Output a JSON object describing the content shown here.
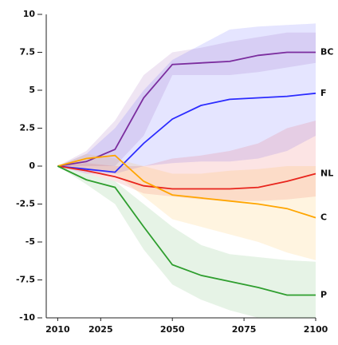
{
  "chart_data": {
    "type": "line",
    "x": [
      2010,
      2020,
      2030,
      2040,
      2050,
      2060,
      2070,
      2080,
      2090,
      2100
    ],
    "xlim": [
      2006,
      2100
    ],
    "xticks": [
      2010,
      2025,
      2050,
      2075,
      2100
    ],
    "ylim": [
      -10,
      10
    ],
    "yticks": [
      -10,
      -7.5,
      -5,
      -2.5,
      0,
      2.5,
      5,
      7.5,
      10
    ],
    "series": [
      {
        "name": "BC",
        "color": "#7b2d9e",
        "values": [
          0,
          0.3,
          1.1,
          4.5,
          6.7,
          6.8,
          6.9,
          7.3,
          7.5,
          7.5
        ],
        "lower": [
          0,
          0,
          0,
          2,
          6,
          6,
          6,
          6.2,
          6.5,
          6.8
        ],
        "upper": [
          0,
          1,
          3,
          6,
          7.5,
          7.8,
          8.2,
          8.5,
          8.8,
          8.8
        ]
      },
      {
        "name": "F",
        "color": "#2b2bff",
        "values": [
          0,
          -0.2,
          -0.4,
          1.5,
          3.1,
          4.0,
          4.4,
          4.5,
          4.6,
          4.8
        ],
        "lower": [
          0,
          -0.5,
          -0.5,
          0,
          0.2,
          0.3,
          0.3,
          0.5,
          1,
          2
        ],
        "upper": [
          0,
          0.8,
          2.5,
          5,
          7,
          8,
          9,
          9.2,
          9.3,
          9.4
        ]
      },
      {
        "name": "NL",
        "color": "#e8251d",
        "values": [
          0,
          -0.3,
          -0.7,
          -1.3,
          -1.5,
          -1.5,
          -1.5,
          -1.4,
          -1.0,
          -0.5
        ],
        "lower": [
          0,
          -0.5,
          -1,
          -1.8,
          -2,
          -2.2,
          -2.3,
          -2.3,
          -2.2,
          -2
        ],
        "upper": [
          0,
          0.2,
          0,
          0,
          0.5,
          0.7,
          1,
          1.5,
          2.5,
          3
        ]
      },
      {
        "name": "C",
        "color": "#ffa500",
        "values": [
          0,
          0.5,
          0.7,
          -1.0,
          -1.9,
          -2.1,
          -2.3,
          -2.5,
          -2.8,
          -3.4
        ],
        "lower": [
          0,
          -0.2,
          -0.5,
          -2,
          -3.5,
          -4,
          -4.5,
          -5,
          -5.7,
          -6.2
        ],
        "upper": [
          0,
          0.8,
          0.5,
          0,
          -0.5,
          -0.5,
          -0.3,
          -0.2,
          0,
          0
        ]
      },
      {
        "name": "P",
        "color": "#2e9e2e",
        "values": [
          0,
          -0.9,
          -1.4,
          -4.0,
          -6.5,
          -7.2,
          -7.6,
          -8.0,
          -8.5,
          -8.5
        ],
        "lower": [
          0,
          -1.2,
          -2.5,
          -5.5,
          -7.8,
          -8.8,
          -9.5,
          -10,
          -10,
          -10
        ],
        "upper": [
          0,
          -0.5,
          -1,
          -2.5,
          -4,
          -5.2,
          -5.8,
          -6,
          -6.2,
          -6.3
        ]
      }
    ]
  }
}
